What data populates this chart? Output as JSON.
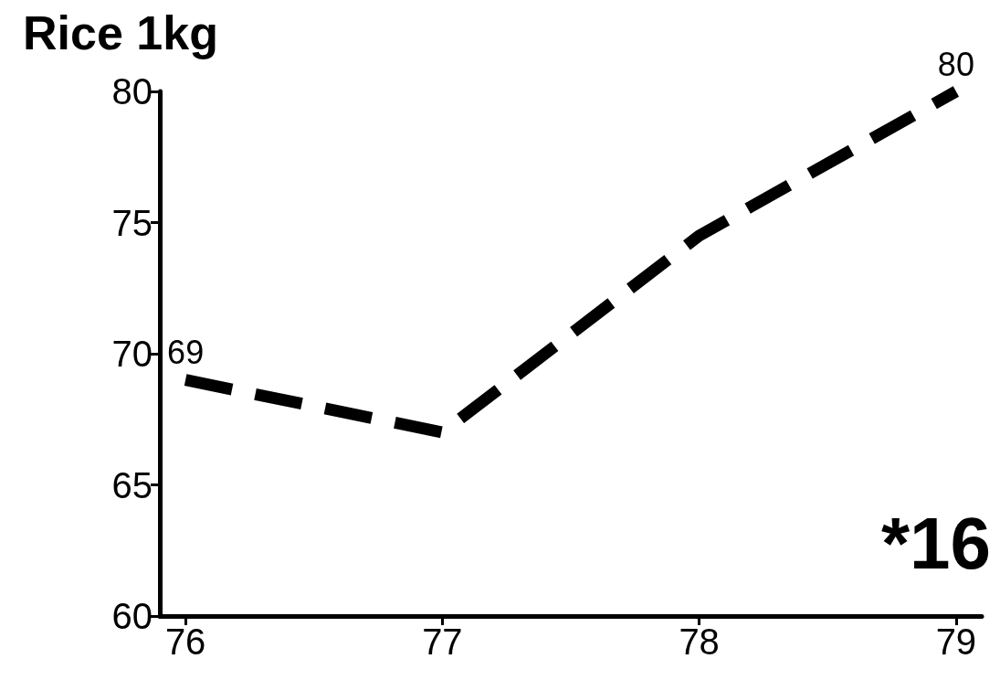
{
  "chart_data": {
    "type": "line",
    "title": "Rice 1kg",
    "x": [
      76,
      77,
      78,
      79
    ],
    "series": [
      {
        "color": "#000000",
        "values": [
          69,
          67,
          74.5,
          80
        ],
        "value_labels": [
          "69",
          null,
          null,
          "80"
        ]
      }
    ],
    "xlim": [
      75.9,
      79.1
    ],
    "xticks": [
      76,
      77,
      78,
      79
    ],
    "ylim": [
      60,
      80
    ],
    "yticks": [
      60,
      65,
      70,
      75,
      80
    ],
    "grid": false,
    "marker": "none",
    "line_style": "dashed",
    "annotations": [
      "*16"
    ]
  }
}
